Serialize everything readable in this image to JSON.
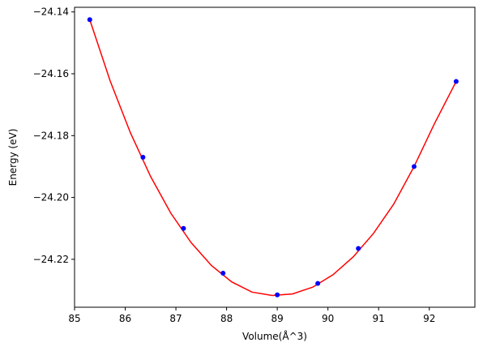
{
  "chart_data": {
    "type": "scatter",
    "title": "",
    "xlabel": "Volume(Å^3)",
    "ylabel": "Energy (eV)",
    "xlim": [
      85.0,
      92.9
    ],
    "ylim": [
      -24.2355,
      -24.1385
    ],
    "xticks": [
      85,
      86,
      87,
      88,
      89,
      90,
      91,
      92
    ],
    "yticks": [
      -24.14,
      -24.16,
      -24.18,
      -24.2,
      -24.22
    ],
    "ytick_labels": [
      "−24.14",
      "−24.16",
      "−24.18",
      "−24.20",
      "−24.22"
    ],
    "grid": false,
    "series": [
      {
        "kind": "points",
        "color": "#0000ff",
        "x": [
          85.3,
          86.35,
          87.15,
          87.93,
          89.0,
          89.8,
          90.6,
          91.7,
          92.53
        ],
        "y": [
          -24.1425,
          -24.187,
          -24.21,
          -24.2245,
          -24.2315,
          -24.2278,
          -24.2165,
          -24.19,
          -24.1625
        ]
      },
      {
        "kind": "fit",
        "color": "#ff0000",
        "x": [
          85.3,
          85.7,
          86.1,
          86.5,
          86.9,
          87.3,
          87.7,
          88.1,
          88.5,
          88.9,
          89.3,
          89.7,
          90.1,
          90.5,
          90.9,
          91.3,
          91.7,
          92.1,
          92.53
        ],
        "y": [
          -24.1425,
          -24.1622,
          -24.179,
          -24.1932,
          -24.2051,
          -24.2146,
          -24.222,
          -24.2273,
          -24.2306,
          -24.2317,
          -24.2312,
          -24.229,
          -24.225,
          -24.2192,
          -24.2116,
          -24.2021,
          -24.19,
          -24.1762,
          -24.1625
        ]
      }
    ]
  }
}
